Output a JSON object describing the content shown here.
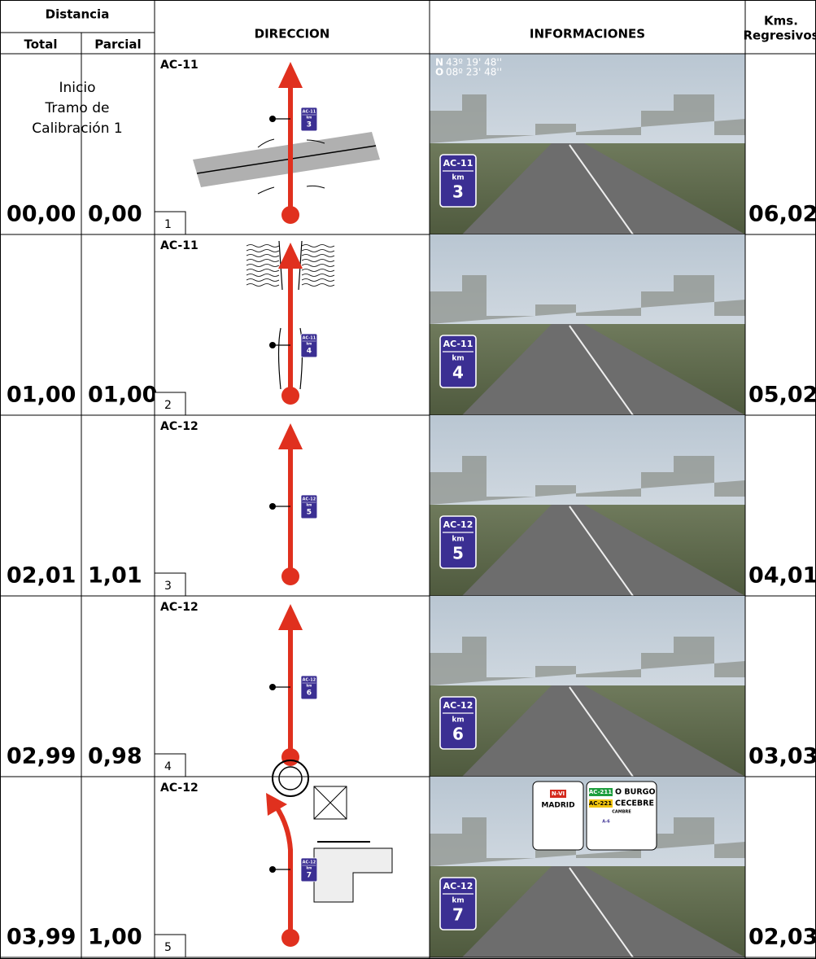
{
  "header": {
    "distancia": "Distancia",
    "total": "Total",
    "parcial": "Parcial",
    "direccion": "DIRECCION",
    "informaciones": "INFORMACIONES",
    "kms": "Kms.",
    "regresivos": "Regresivos"
  },
  "note": [
    "Inicio",
    "Tramo de",
    "Calibración 1"
  ],
  "coordinates": [
    {
      "dir": "N",
      "value": "43º 19' 48''"
    },
    {
      "dir": "O",
      "value": "08º 23' 48''"
    }
  ],
  "rows": [
    {
      "total": "00,00",
      "parcial": "0,00",
      "step": "1",
      "road": "AC-11",
      "sign_road": "AC-11",
      "km_label": "km",
      "km": "3",
      "regresivo": "06,02"
    },
    {
      "total": "01,00",
      "parcial": "01,00",
      "step": "2",
      "road": "AC-11",
      "sign_road": "AC-11",
      "km_label": "km",
      "km": "4",
      "regresivo": "05,02"
    },
    {
      "total": "02,01",
      "parcial": "1,01",
      "step": "3",
      "road": "AC-12",
      "sign_road": "AC-12",
      "km_label": "km",
      "km": "5",
      "regresivo": "04,01"
    },
    {
      "total": "02,99",
      "parcial": "0,98",
      "step": "4",
      "road": "AC-12",
      "sign_road": "AC-12",
      "km_label": "km",
      "km": "6",
      "regresivo": "03,03"
    },
    {
      "total": "03,99",
      "parcial": "1,00",
      "step": "5",
      "road": "AC-12",
      "sign_road": "AC-12",
      "km_label": "km",
      "km": "7",
      "regresivo": "02,03"
    }
  ],
  "panel": {
    "left_road": "N-VI",
    "left_dest": "MADRID",
    "right": [
      [
        "AC-211",
        "O BURGO"
      ],
      [
        "AC-221",
        "CECEBRE"
      ]
    ],
    "small": [
      "CAMBRE",
      "A-6"
    ]
  }
}
